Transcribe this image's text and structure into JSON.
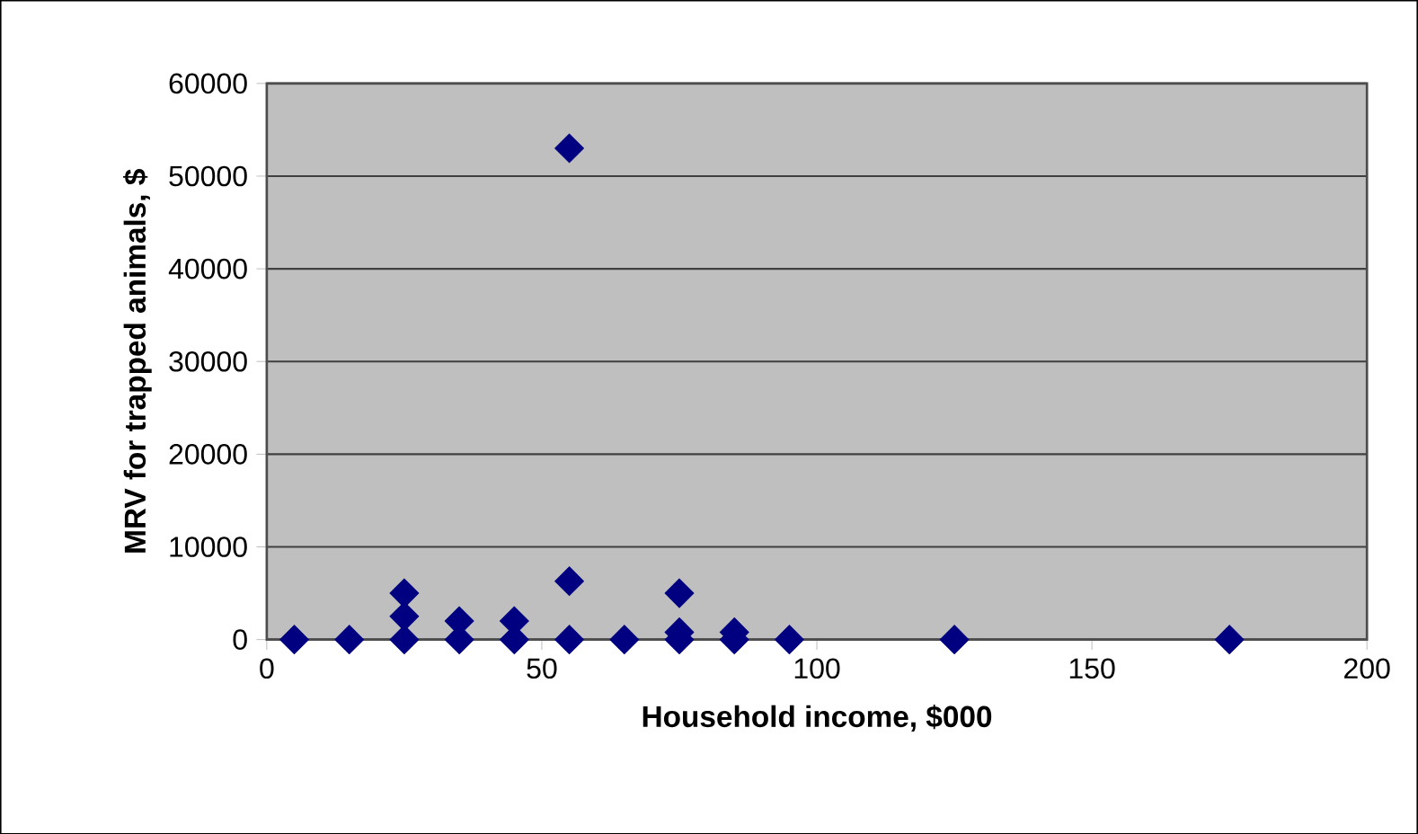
{
  "chart_data": {
    "type": "scatter",
    "xlabel": "Household income, $000",
    "ylabel": "MRV for trapped animals, $",
    "series": [
      {
        "color": "#000080",
        "x": [
          5,
          15,
          25,
          25,
          25,
          35,
          35,
          45,
          45,
          55,
          55,
          55,
          65,
          75,
          75,
          75,
          85,
          85,
          95,
          125,
          175
        ],
        "values": [
          0,
          0,
          0,
          2500,
          5000,
          0,
          2000,
          0,
          2000,
          0,
          6300,
          53000,
          0,
          0,
          800,
          5000,
          0,
          800,
          0,
          0,
          0
        ]
      }
    ],
    "xlim": [
      0,
      200
    ],
    "ylim": [
      0,
      60000
    ],
    "xticks": [
      0,
      50,
      100,
      150,
      200
    ],
    "yticks": [
      0,
      10000,
      20000,
      30000,
      40000,
      50000,
      60000
    ],
    "grid": "y",
    "marker": "diamond"
  }
}
